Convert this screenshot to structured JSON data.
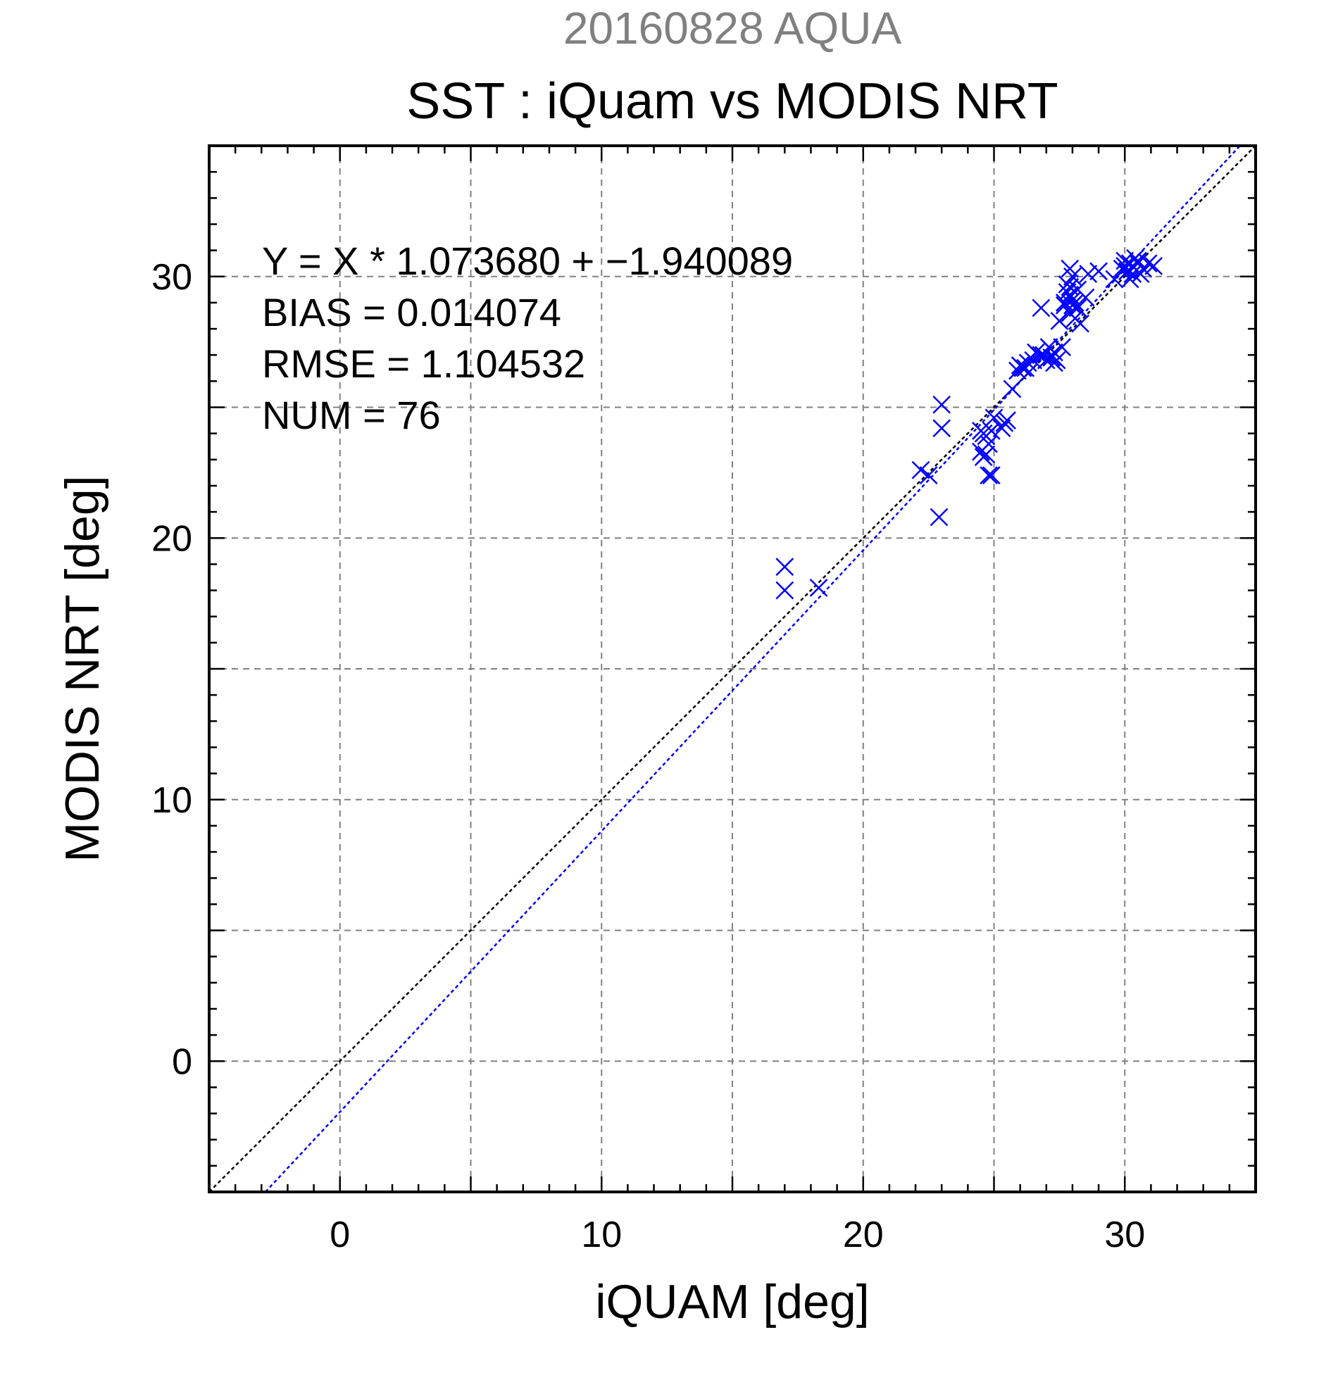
{
  "header": {
    "supertitle": "20160828 AQUA",
    "title": "SST : iQuam vs MODIS NRT"
  },
  "stats": {
    "equation": "Y = X * 1.073680 + −1.940089",
    "bias": "BIAS = 0.014074",
    "rmse": "RMSE = 1.104532",
    "num": "NUM = 76"
  },
  "colors": {
    "points": "#0000ff",
    "regression_line": "#0000ff",
    "identity_line": "#000000",
    "grid": "#808080",
    "supertitle": "#808080"
  },
  "chart_data": {
    "type": "scatter",
    "title": "SST : iQuam vs MODIS NRT",
    "subtitle": "20160828 AQUA",
    "xlabel": "iQUAM [deg]",
    "ylabel": "MODIS NRT [deg]",
    "xlim": [
      -5,
      35
    ],
    "ylim": [
      -5,
      35
    ],
    "xticks": [
      0,
      10,
      20,
      30
    ],
    "yticks": [
      0,
      10,
      20,
      30
    ],
    "grid": true,
    "grid_step": 5,
    "marker": "x",
    "lines": [
      {
        "kind": "identity",
        "slope": 1,
        "intercept": 0,
        "color": "#000000",
        "style": "dotted"
      },
      {
        "kind": "regression",
        "slope": 1.07368,
        "intercept": -1.940089,
        "color": "#0000ff",
        "style": "dotted"
      }
    ],
    "series": [
      {
        "color": "#0000ff",
        "points": [
          [
            17.0,
            18.9
          ],
          [
            17.0,
            18.0
          ],
          [
            18.3,
            18.1
          ],
          [
            22.2,
            22.6
          ],
          [
            22.5,
            22.4
          ],
          [
            22.9,
            20.8
          ],
          [
            23.0,
            25.1
          ],
          [
            23.0,
            24.2
          ],
          [
            24.5,
            23.3
          ],
          [
            24.6,
            24.0
          ],
          [
            24.7,
            23.2
          ],
          [
            24.8,
            22.4
          ],
          [
            24.9,
            22.4
          ],
          [
            24.8,
            23.6
          ],
          [
            24.9,
            24.1
          ],
          [
            25.0,
            24.6
          ],
          [
            25.3,
            24.2
          ],
          [
            25.5,
            24.5
          ],
          [
            25.7,
            25.7
          ],
          [
            25.9,
            26.4
          ],
          [
            26.0,
            26.6
          ],
          [
            26.2,
            26.5
          ],
          [
            26.5,
            26.8
          ],
          [
            26.6,
            27.1
          ],
          [
            26.8,
            27.0
          ],
          [
            27.0,
            26.8
          ],
          [
            27.1,
            27.3
          ],
          [
            27.2,
            26.9
          ],
          [
            27.3,
            27.1
          ],
          [
            27.4,
            26.8
          ],
          [
            26.8,
            28.8
          ],
          [
            27.6,
            27.3
          ],
          [
            27.5,
            28.3
          ],
          [
            27.7,
            29.0
          ],
          [
            27.8,
            29.4
          ],
          [
            27.8,
            29.7
          ],
          [
            27.9,
            30.3
          ],
          [
            27.9,
            29.6
          ],
          [
            27.9,
            28.6
          ],
          [
            28.0,
            28.9
          ],
          [
            28.0,
            29.1
          ],
          [
            28.1,
            28.4
          ],
          [
            28.2,
            28.8
          ],
          [
            28.3,
            28.2
          ],
          [
            28.5,
            29.2
          ],
          [
            28.6,
            30.1
          ],
          [
            29.0,
            30.2
          ],
          [
            29.6,
            29.9
          ],
          [
            29.9,
            30.3
          ],
          [
            30.0,
            30.6
          ],
          [
            30.1,
            30.2
          ],
          [
            30.2,
            29.9
          ],
          [
            30.3,
            30.4
          ],
          [
            30.4,
            30.7
          ],
          [
            30.5,
            30.5
          ],
          [
            30.6,
            30.1
          ],
          [
            30.7,
            30.3
          ],
          [
            30.9,
            30.5
          ],
          [
            31.1,
            30.4
          ],
          [
            30.2,
            30.5
          ],
          [
            27.9,
            29.3
          ],
          [
            28.1,
            29.0
          ],
          [
            24.5,
            24.1
          ],
          [
            24.6,
            23.1
          ],
          [
            25.4,
            24.4
          ],
          [
            26.1,
            26.5
          ],
          [
            26.9,
            27.0
          ],
          [
            27.3,
            26.7
          ],
          [
            27.7,
            28.9
          ],
          [
            28.0,
            30.0
          ],
          [
            30.0,
            30.4
          ],
          [
            30.3,
            30.1
          ],
          [
            24.7,
            23.9
          ],
          [
            26.3,
            26.7
          ],
          [
            28.2,
            29.5
          ],
          [
            30.5,
            30.6
          ]
        ]
      }
    ]
  }
}
